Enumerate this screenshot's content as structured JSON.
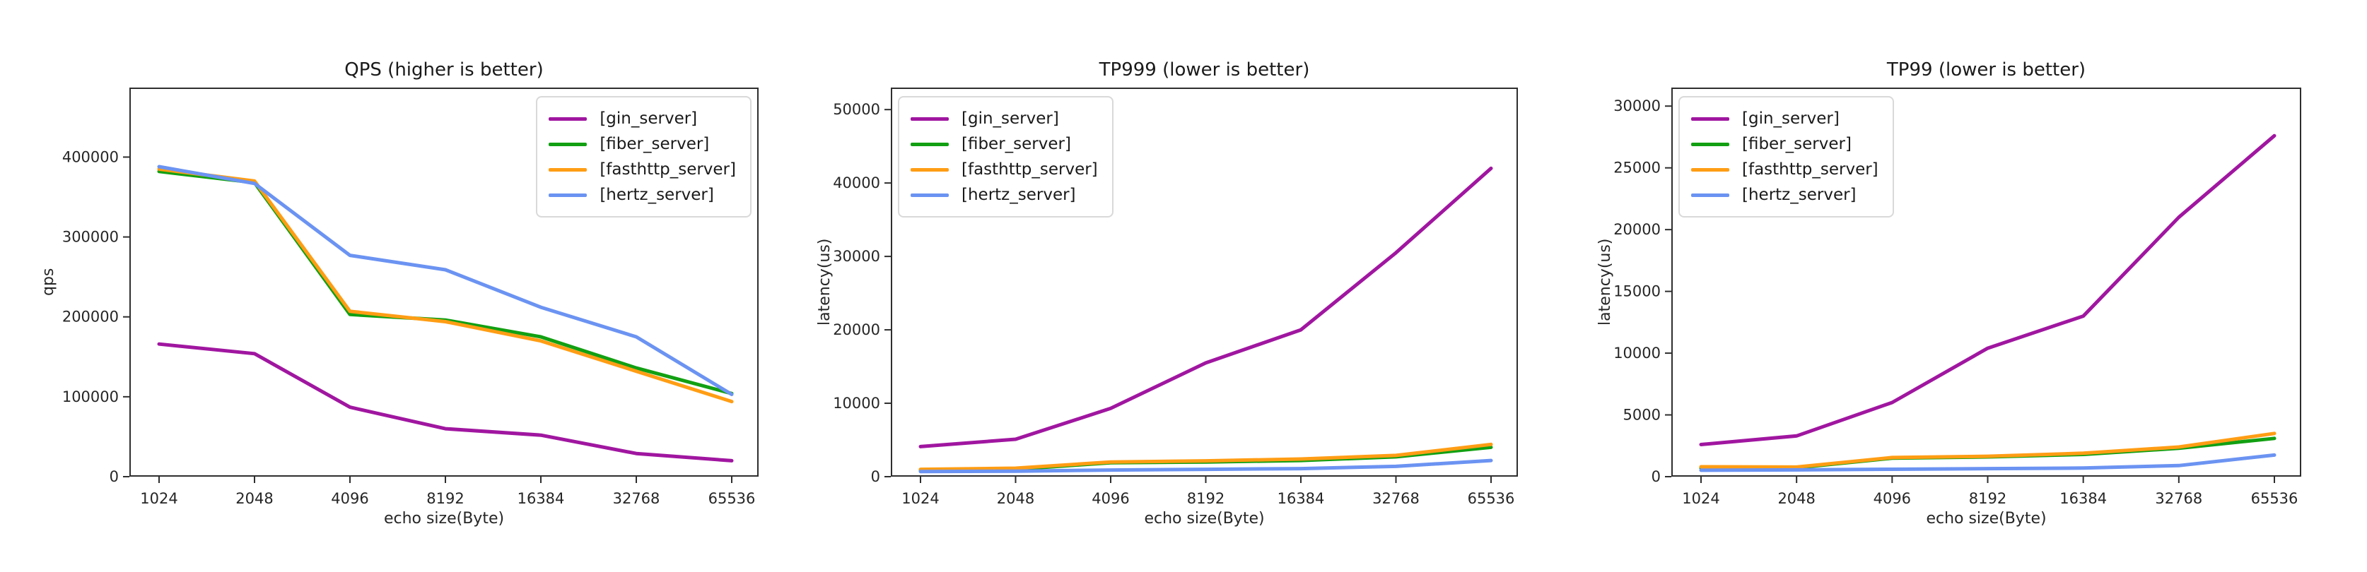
{
  "page": {
    "background": "#ffffff",
    "axis_color": "#2e2e2e",
    "text_color": "#262626"
  },
  "shared": {
    "xlabel": "echo size(Byte)",
    "categories": [
      "1024",
      "2048",
      "4096",
      "8192",
      "16384",
      "32768",
      "65536"
    ],
    "series_meta": [
      {
        "key": "gin_server",
        "label": "[gin_server]",
        "color": "#a016a0"
      },
      {
        "key": "fiber_server",
        "label": "[fiber_server]",
        "color": "#12a012"
      },
      {
        "key": "fasthttp_server",
        "label": "[fasthttp_server]",
        "color": "#ff9d14"
      },
      {
        "key": "hertz_server",
        "label": "[hertz_server]",
        "color": "#6b93f2"
      }
    ]
  },
  "chart_data": [
    {
      "type": "line",
      "title": "QPS (higher is better)",
      "xlabel": "echo size(Byte)",
      "ylabel": "qps",
      "categories": [
        "1024",
        "2048",
        "4096",
        "8192",
        "16384",
        "32768",
        "65536"
      ],
      "x_scale": "log2-categorical",
      "grid": false,
      "legend_position": "upper-right",
      "yticks": [
        0,
        100000,
        200000,
        300000,
        400000
      ],
      "ylim": [
        0,
        487000
      ],
      "series": [
        {
          "name": "[gin_server]",
          "color": "#a016a0",
          "values": [
            166000,
            154000,
            87000,
            60000,
            52000,
            29000,
            20000
          ]
        },
        {
          "name": "[fiber_server]",
          "color": "#12a012",
          "values": [
            382000,
            368000,
            203000,
            196000,
            175000,
            136000,
            104000
          ]
        },
        {
          "name": "[fasthttp_server]",
          "color": "#ff9d14",
          "values": [
            385000,
            370000,
            207000,
            194000,
            170000,
            132000,
            94000
          ]
        },
        {
          "name": "[hertz_server]",
          "color": "#6b93f2",
          "values": [
            388000,
            367000,
            277000,
            259000,
            212000,
            175000,
            103000
          ]
        }
      ]
    },
    {
      "type": "line",
      "title": "TP999 (lower is better)",
      "xlabel": "echo size(Byte)",
      "ylabel": "latency(us)",
      "categories": [
        "1024",
        "2048",
        "4096",
        "8192",
        "16384",
        "32768",
        "65536"
      ],
      "x_scale": "log2-categorical",
      "grid": false,
      "legend_position": "upper-left",
      "yticks": [
        0,
        10000,
        20000,
        30000,
        40000,
        50000
      ],
      "ylim": [
        0,
        53000
      ],
      "series": [
        {
          "name": "[gin_server]",
          "color": "#a016a0",
          "values": [
            4100,
            5100,
            9300,
            15500,
            20000,
            30500,
            42000
          ]
        },
        {
          "name": "[fiber_server]",
          "color": "#12a012",
          "values": [
            900,
            1000,
            1900,
            2000,
            2200,
            2700,
            4000
          ]
        },
        {
          "name": "[fasthttp_server]",
          "color": "#ff9d14",
          "values": [
            1000,
            1150,
            2000,
            2150,
            2400,
            2900,
            4400
          ]
        },
        {
          "name": "[hertz_server]",
          "color": "#6b93f2",
          "values": [
            700,
            750,
            900,
            1000,
            1100,
            1400,
            2200
          ]
        }
      ]
    },
    {
      "type": "line",
      "title": "TP99 (lower is better)",
      "xlabel": "echo size(Byte)",
      "ylabel": "latency(us)",
      "categories": [
        "1024",
        "2048",
        "4096",
        "8192",
        "16384",
        "32768",
        "65536"
      ],
      "x_scale": "log2-categorical",
      "grid": false,
      "legend_position": "upper-left",
      "yticks": [
        0,
        5000,
        10000,
        15000,
        20000,
        25000,
        30000
      ],
      "ylim": [
        0,
        31500
      ],
      "series": [
        {
          "name": "[gin_server]",
          "color": "#a016a0",
          "values": [
            2600,
            3300,
            6000,
            10400,
            13000,
            21000,
            27600
          ]
        },
        {
          "name": "[fiber_server]",
          "color": "#12a012",
          "values": [
            700,
            720,
            1500,
            1600,
            1800,
            2300,
            3100
          ]
        },
        {
          "name": "[fasthttp_server]",
          "color": "#ff9d14",
          "values": [
            800,
            780,
            1550,
            1650,
            1900,
            2400,
            3500
          ]
        },
        {
          "name": "[hertz_server]",
          "color": "#6b93f2",
          "values": [
            520,
            550,
            600,
            650,
            700,
            900,
            1750
          ]
        }
      ]
    }
  ]
}
